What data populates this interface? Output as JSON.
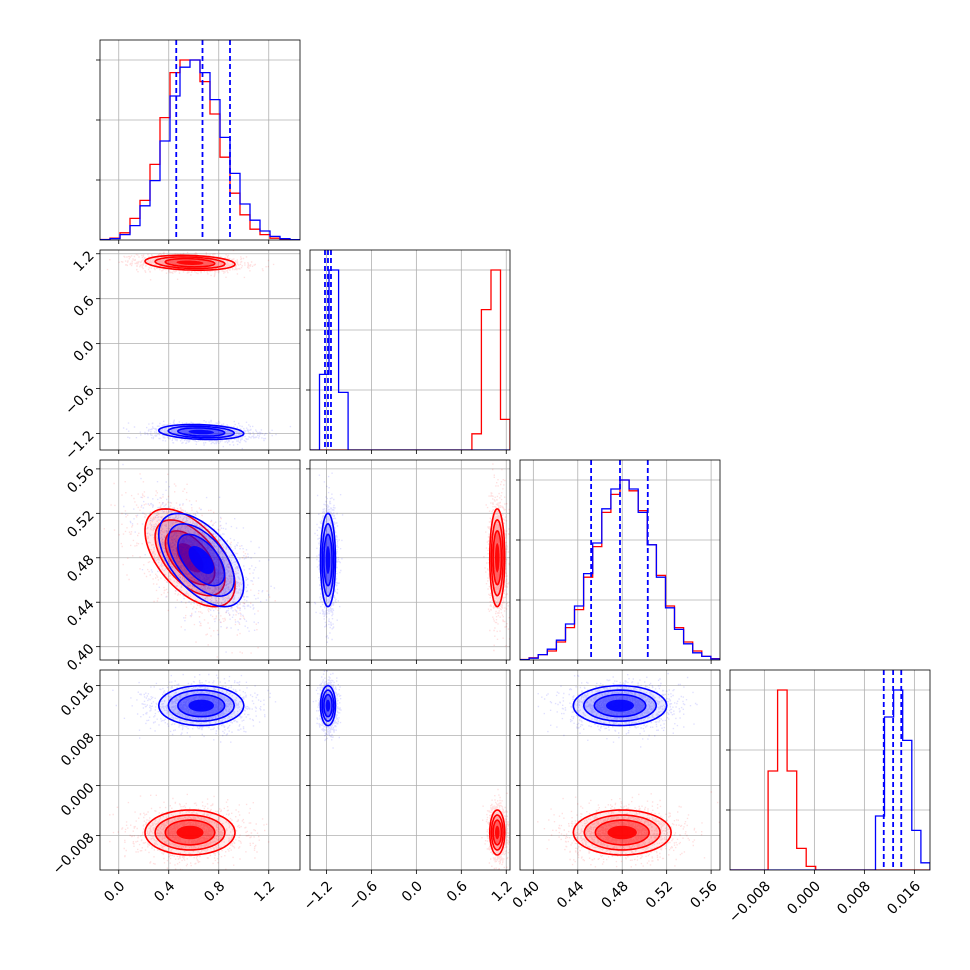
{
  "colors": {
    "red": "#ff0000",
    "blue": "#0000ff",
    "grid": "#b0b0b0",
    "frame": "#000000"
  },
  "chart_data": {
    "type": "corner",
    "grid": true,
    "series": [
      {
        "name": "",
        "color": "#ff0000",
        "mean": [
          0.57,
          1.08,
          0.48,
          -0.0075
        ],
        "sd": [
          0.18,
          0.05,
          0.022,
          0.0018
        ],
        "corr": [
          [
            1,
            -0.2,
            -0.55,
            0
          ],
          [
            -0.2,
            1,
            0,
            0
          ],
          [
            -0.55,
            0,
            1,
            0
          ],
          [
            0,
            0,
            0,
            1
          ]
        ]
      },
      {
        "name": "",
        "color": "#0000ff",
        "mean": [
          0.66,
          -1.18,
          0.478,
          0.0128
        ],
        "sd": [
          0.17,
          0.05,
          0.021,
          0.0016
        ],
        "corr": [
          [
            1,
            -0.2,
            -0.55,
            0
          ],
          [
            -0.2,
            1,
            0,
            0
          ],
          [
            -0.55,
            0,
            1,
            0
          ],
          [
            0,
            0,
            0,
            1
          ]
        ],
        "quantiles": [
          [
            0.46,
            0.67,
            0.89
          ],
          [
            -1.22,
            -1.18,
            -1.14
          ],
          [
            0.452,
            0.478,
            0.503
          ],
          [
            0.0111,
            0.0126,
            0.0139
          ]
        ]
      }
    ],
    "params": [
      {
        "range": [
          -0.15,
          1.45
        ],
        "ticks": [
          "0.0",
          "0.4",
          "0.8",
          "1.2"
        ]
      },
      {
        "range": [
          -1.42,
          1.25
        ],
        "ticks": [
          "−1.2",
          "−0.6",
          "0.0",
          "0.6",
          "1.2"
        ]
      },
      {
        "range": [
          0.388,
          0.568
        ],
        "ticks": [
          "0.40",
          "0.44",
          "0.48",
          "0.52",
          "0.56"
        ]
      },
      {
        "range": [
          -0.0135,
          0.0185
        ],
        "ticks": [
          "−0.008",
          "0.000",
          "0.008",
          "0.016"
        ]
      }
    ],
    "hist_1d": {
      "red": [
        [
          0.003,
          0.01,
          0.04,
          0.12,
          0.22,
          0.42,
          0.68,
          0.93,
          1.0,
          1.0,
          0.88,
          0.7,
          0.46,
          0.26,
          0.14,
          0.06,
          0.03,
          0.01,
          0.003,
          0.001
        ],
        [
          0,
          0,
          0,
          0,
          0,
          0,
          0,
          0,
          0,
          0,
          0,
          0,
          0,
          0,
          0,
          0,
          0,
          0.09,
          0.78,
          1.0,
          0.17
        ],
        [
          0.003,
          0.012,
          0.03,
          0.05,
          0.1,
          0.18,
          0.28,
          0.46,
          0.63,
          0.82,
          0.92,
          1.0,
          0.94,
          0.83,
          0.64,
          0.47,
          0.3,
          0.18,
          0.1,
          0.05,
          0.02,
          0.008
        ],
        [
          0,
          0,
          0,
          0,
          0.55,
          1.0,
          0.55,
          0.12,
          0.02,
          0,
          0,
          0,
          0,
          0,
          0,
          0,
          0,
          0,
          0,
          0,
          0
        ]
      ],
      "blue": [
        [
          0.002,
          0.008,
          0.03,
          0.08,
          0.19,
          0.33,
          0.55,
          0.8,
          0.96,
          1.0,
          0.93,
          0.78,
          0.57,
          0.37,
          0.2,
          0.11,
          0.05,
          0.02,
          0.007,
          0.002
        ],
        [
          0,
          0.42,
          1.0,
          0.32,
          0,
          0,
          0,
          0,
          0,
          0,
          0,
          0,
          0,
          0,
          0,
          0,
          0,
          0,
          0,
          0,
          0
        ],
        [
          0.002,
          0.01,
          0.03,
          0.06,
          0.11,
          0.2,
          0.3,
          0.48,
          0.65,
          0.84,
          0.95,
          1.0,
          0.95,
          0.82,
          0.64,
          0.46,
          0.29,
          0.17,
          0.09,
          0.04,
          0.02,
          0.006
        ],
        [
          0,
          0,
          0,
          0,
          0,
          0,
          0,
          0,
          0,
          0,
          0,
          0,
          0,
          0,
          0,
          0,
          0.3,
          0.85,
          1.0,
          0.72,
          0.22,
          0.04
        ]
      ]
    }
  }
}
